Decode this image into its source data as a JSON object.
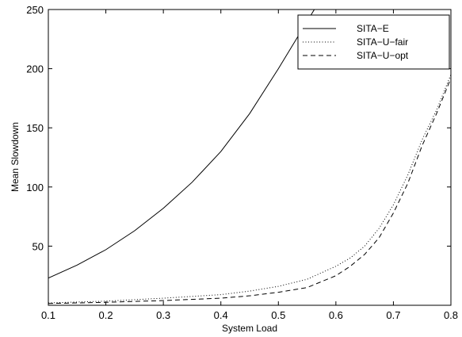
{
  "chart_data": {
    "type": "line",
    "title": "",
    "xlabel": "System Load",
    "ylabel": "Mean Slowdown",
    "xlim": [
      0.1,
      0.8
    ],
    "ylim": [
      0,
      250
    ],
    "xticks": [
      0.1,
      0.2,
      0.3,
      0.4,
      0.5,
      0.6,
      0.7,
      0.8
    ],
    "xtick_labels": [
      "0.1",
      "0.2",
      "0.3",
      "0.4",
      "0.5",
      "0.6",
      "0.7",
      "0.8"
    ],
    "yticks": [
      50,
      100,
      150,
      200,
      250
    ],
    "ytick_labels": [
      "50",
      "100",
      "150",
      "200",
      "250"
    ],
    "grid": false,
    "legend_position": "top-right",
    "series": [
      {
        "name": "SITA−E",
        "style": "solid",
        "color": "#000000",
        "x": [
          0.1,
          0.15,
          0.2,
          0.25,
          0.3,
          0.35,
          0.4,
          0.45,
          0.5,
          0.55,
          0.565
        ],
        "y": [
          23,
          34,
          47,
          63,
          82,
          104,
          130,
          162,
          200,
          240,
          252
        ]
      },
      {
        "name": "SITA−U−fair",
        "style": "dotted",
        "color": "#000000",
        "x": [
          0.1,
          0.2,
          0.3,
          0.4,
          0.45,
          0.5,
          0.55,
          0.6,
          0.625,
          0.65,
          0.675,
          0.7,
          0.725,
          0.75,
          0.775,
          0.8
        ],
        "y": [
          2,
          3.5,
          6,
          9,
          12,
          16,
          22,
          33,
          40,
          50,
          65,
          85,
          110,
          140,
          165,
          195
        ]
      },
      {
        "name": "SITA−U−opt",
        "style": "dashed",
        "color": "#000000",
        "x": [
          0.1,
          0.2,
          0.3,
          0.4,
          0.45,
          0.5,
          0.55,
          0.6,
          0.625,
          0.65,
          0.675,
          0.7,
          0.725,
          0.75,
          0.775,
          0.8
        ],
        "y": [
          1.5,
          2.5,
          4,
          6,
          8,
          11,
          15,
          25,
          33,
          43,
          57,
          78,
          103,
          135,
          162,
          192
        ]
      }
    ]
  }
}
